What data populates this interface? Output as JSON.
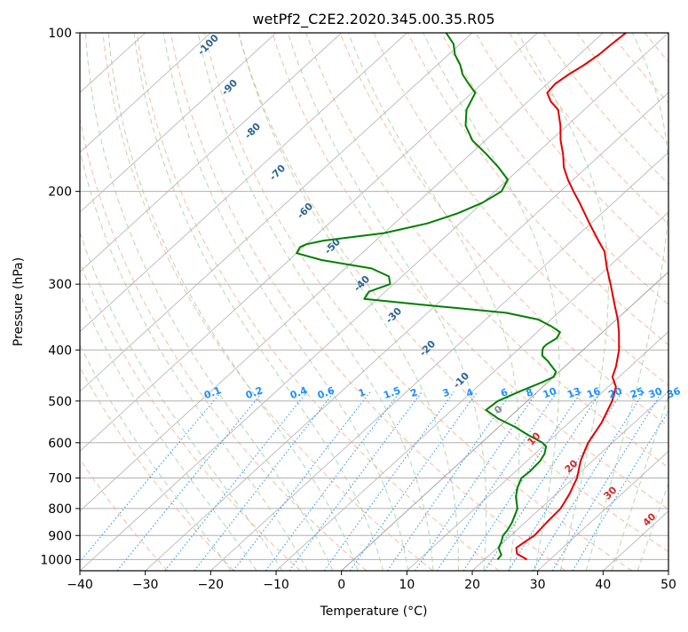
{
  "chart_data": {
    "type": "line",
    "subtype": "skew-t log-p",
    "title": "wetPf2_C2E2.2020.345.00.35.R05",
    "xlabel": "Temperature (°C)",
    "ylabel": "Pressure (hPa)",
    "xlim": [
      -40,
      50
    ],
    "ylim": [
      1050,
      100
    ],
    "y_scale": "log",
    "x_ticks": [
      -40,
      -30,
      -20,
      -10,
      0,
      10,
      20,
      30,
      40,
      50
    ],
    "y_ticks": [
      1000,
      900,
      800,
      700,
      600,
      500,
      400,
      300,
      200,
      100
    ],
    "grid": true,
    "series": [
      {
        "color": "#e00000",
        "points": [
          [
            1000,
            26.5
          ],
          [
            975,
            24.0
          ],
          [
            950,
            22.9
          ],
          [
            925,
            23.2
          ],
          [
            900,
            23.6
          ],
          [
            850,
            23.3
          ],
          [
            800,
            23.1
          ],
          [
            750,
            22.0
          ],
          [
            700,
            20.5
          ],
          [
            650,
            18.2
          ],
          [
            600,
            16.3
          ],
          [
            550,
            15.0
          ],
          [
            500,
            13.0
          ],
          [
            470,
            11.2
          ],
          [
            450,
            9.0
          ],
          [
            430,
            7.8
          ],
          [
            400,
            5.5
          ],
          [
            370,
            2.5
          ],
          [
            350,
            0.2
          ],
          [
            330,
            -2.5
          ],
          [
            300,
            -6.8
          ],
          [
            280,
            -10.0
          ],
          [
            260,
            -13.2
          ],
          [
            250,
            -15.5
          ],
          [
            230,
            -20.2
          ],
          [
            210,
            -25.2
          ],
          [
            200,
            -28.0
          ],
          [
            190,
            -30.8
          ],
          [
            180,
            -33.5
          ],
          [
            170,
            -35.8
          ],
          [
            160,
            -38.5
          ],
          [
            150,
            -41.0
          ],
          [
            140,
            -44.0
          ],
          [
            135,
            -46.5
          ],
          [
            130,
            -48.5
          ],
          [
            125,
            -48.8
          ],
          [
            120,
            -48.3
          ],
          [
            115,
            -47.5
          ],
          [
            110,
            -47.0
          ],
          [
            105,
            -46.8
          ],
          [
            100,
            -46.5
          ]
        ]
      },
      {
        "color": "#008000",
        "points": [
          [
            1000,
            22.0
          ],
          [
            980,
            21.8
          ],
          [
            950,
            20.2
          ],
          [
            925,
            19.6
          ],
          [
            900,
            18.8
          ],
          [
            880,
            18.6
          ],
          [
            850,
            18.0
          ],
          [
            800,
            16.5
          ],
          [
            760,
            14.3
          ],
          [
            730,
            13.0
          ],
          [
            700,
            12.0
          ],
          [
            680,
            12.2
          ],
          [
            650,
            12.0
          ],
          [
            630,
            11.5
          ],
          [
            610,
            10.5
          ],
          [
            600,
            9.3
          ],
          [
            580,
            5.8
          ],
          [
            560,
            2.5
          ],
          [
            540,
            -1.5
          ],
          [
            520,
            -4.8
          ],
          [
            500,
            -4.5
          ],
          [
            480,
            -2.8
          ],
          [
            460,
            -0.8
          ],
          [
            450,
            0.0
          ],
          [
            440,
            -0.5
          ],
          [
            430,
            -2.0
          ],
          [
            420,
            -3.5
          ],
          [
            410,
            -5.3
          ],
          [
            400,
            -6.2
          ],
          [
            395,
            -6.5
          ],
          [
            390,
            -6.5
          ],
          [
            380,
            -6.0
          ],
          [
            370,
            -6.5
          ],
          [
            360,
            -9.0
          ],
          [
            350,
            -12.0
          ],
          [
            340,
            -18.0
          ],
          [
            330,
            -30.0
          ],
          [
            320,
            -42.0
          ],
          [
            310,
            -42.5
          ],
          [
            300,
            -40.5
          ],
          [
            290,
            -42.0
          ],
          [
            280,
            -46.0
          ],
          [
            270,
            -55.0
          ],
          [
            262,
            -60.0
          ],
          [
            255,
            -60.5
          ],
          [
            252,
            -60.0
          ],
          [
            248,
            -58.0
          ],
          [
            240,
            -50.0
          ],
          [
            230,
            -45.0
          ],
          [
            220,
            -42.0
          ],
          [
            210,
            -40.0
          ],
          [
            200,
            -39.0
          ],
          [
            190,
            -40.0
          ],
          [
            180,
            -43.5
          ],
          [
            170,
            -47.5
          ],
          [
            160,
            -52.0
          ],
          [
            150,
            -55.5
          ],
          [
            140,
            -58.0
          ],
          [
            130,
            -59.5
          ],
          [
            125,
            -62.0
          ],
          [
            120,
            -64.5
          ],
          [
            115,
            -66.5
          ],
          [
            110,
            -69.0
          ],
          [
            105,
            -71.0
          ],
          [
            100,
            -74.0
          ]
        ]
      }
    ],
    "dry_adiabat_labels": [
      "-100",
      "-90",
      "-80",
      "-70",
      "-60",
      "-50",
      "-40",
      "-30",
      "-20",
      "-10"
    ],
    "moist_adiabat_labels": [
      "0",
      "10",
      "20",
      "30",
      "40"
    ],
    "mixing_ratio_labels": [
      "0.1",
      "0.2",
      "0.4",
      "0.6",
      "1",
      "1.5",
      "2",
      "3",
      "4",
      "6",
      "8",
      "10",
      "13",
      "16",
      "20",
      "25",
      "30",
      "36"
    ],
    "colors": {
      "temperature": "#e00000",
      "dewpoint": "#008000",
      "dry_adiabat_lines": "#f4a582",
      "dry_adiabat_labels": "#2a6496",
      "moist_adiabat_lines": "#9ccf9c",
      "moist_adiabat_labels": "#d62728",
      "mixing_ratio": "#1e90ff",
      "isotherm_grid": "#b0b0b0",
      "zero_line": "#999999"
    }
  }
}
